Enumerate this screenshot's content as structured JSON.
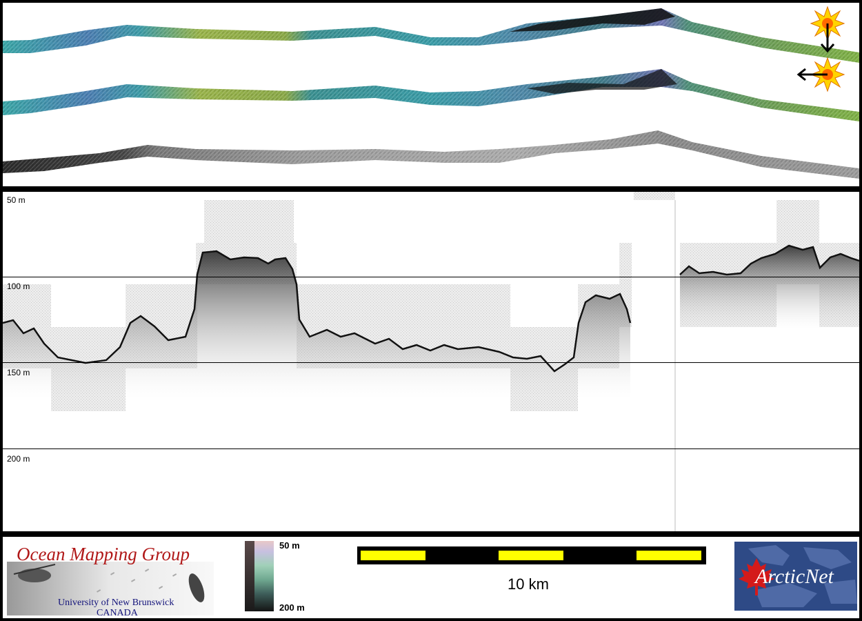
{
  "depth_labels": [
    "50 m",
    "100 m",
    "150 m",
    "200 m"
  ],
  "legend": {
    "colorbar_top_label": "50 m",
    "colorbar_bottom_label": "200 m",
    "scale_bar_label": "10 km"
  },
  "logos": {
    "ocean_mapping_group": {
      "title": "Ocean Mapping Group",
      "subtitle_line1": "University of New Brunswick",
      "subtitle_line2": "CANADA"
    },
    "arcticnet": {
      "text": "ArcticNet"
    }
  },
  "colors": {
    "frame": "#000000",
    "scale_bar_fill": "#ffff00",
    "omg_title": "#b01818",
    "omg_subtitle": "#12127a",
    "arcticnet_bg": "#2e4a86",
    "maple_leaf": "#d41a1a"
  },
  "icons": [
    "sun-illumination-icon",
    "arrow-down-icon",
    "arrow-left-icon",
    "maple-leaf-icon"
  ]
}
